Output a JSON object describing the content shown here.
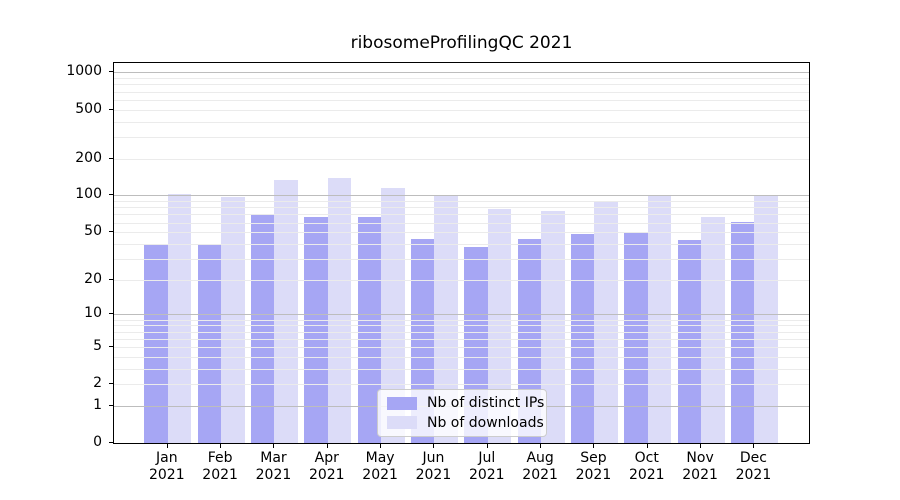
{
  "chart_data": {
    "type": "bar",
    "title": "ribosomeProfilingQC 2021",
    "months": [
      "Jan",
      "Feb",
      "Mar",
      "Apr",
      "May",
      "Jun",
      "Jul",
      "Aug",
      "Sep",
      "Oct",
      "Nov",
      "Dec"
    ],
    "year": "2021",
    "series": [
      {
        "name": "Nb of distinct IPs",
        "color": "#a6a6f4",
        "values": [
          40,
          39,
          71,
          67,
          66,
          44,
          38,
          44,
          48,
          50,
          43,
          61
        ]
      },
      {
        "name": "Nb of downloads",
        "color": "#dcdcf8",
        "values": [
          103,
          98,
          134,
          140,
          115,
          101,
          77,
          74,
          90,
          101,
          66,
          101
        ]
      }
    ],
    "y_axis": {
      "scale": "log1p",
      "tick_values": [
        1000,
        500,
        200,
        100,
        50,
        20,
        10,
        5,
        2,
        1,
        0
      ]
    },
    "grid": "on",
    "legend_position": "inside-bottom-center",
    "colors": {
      "major_grid": "#bdbdbd",
      "minor_grid": "#ebebeb",
      "axis": "#000000",
      "background": "#ffffff"
    }
  }
}
